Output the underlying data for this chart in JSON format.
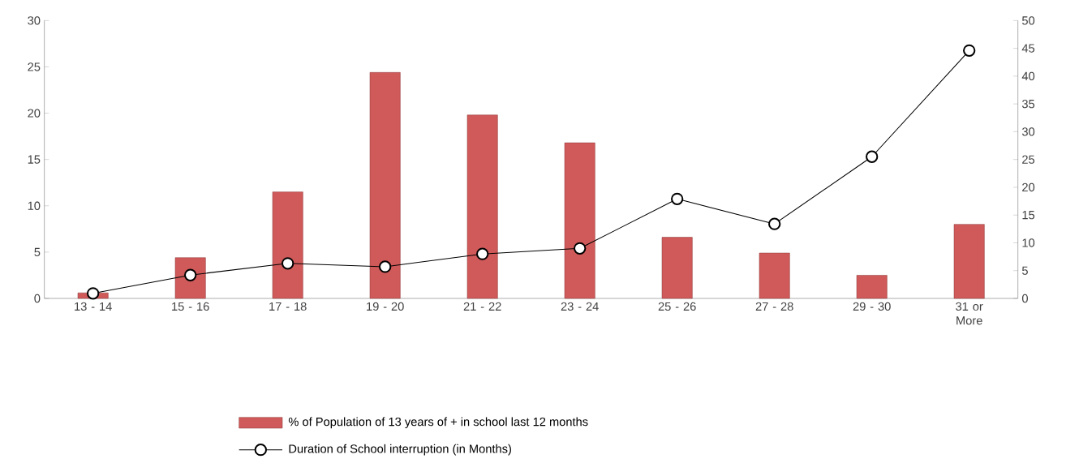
{
  "chart_data": {
    "type": "bar",
    "categories": [
      "13 - 14",
      "15 - 16",
      "17 - 18",
      "19 - 20",
      "21 - 22",
      "23 - 24",
      "25 - 26",
      "27 - 28",
      "29 - 30",
      "31 or More"
    ],
    "series": [
      {
        "name": "% of Population of 13 years of + in school last 12 months",
        "color": "#d05a5a",
        "values": [
          0.6,
          4.4,
          11.5,
          24.4,
          19.8,
          16.8,
          6.6,
          4.9,
          2.5,
          8.0
        ]
      },
      {
        "name": "Duration of School interruption (in Months)",
        "type": "line",
        "axis": "y2",
        "color": "#000000",
        "values": [
          0.9,
          4.2,
          6.3,
          5.7,
          8.0,
          9.0,
          17.9,
          13.4,
          25.5,
          44.6
        ]
      }
    ],
    "ylim": [
      0,
      30
    ],
    "yticks": [
      0,
      5,
      10,
      15,
      20,
      25,
      30
    ],
    "y2lim": [
      0,
      50
    ],
    "y2ticks": [
      0,
      5,
      10,
      15,
      20,
      25,
      30,
      35,
      40,
      45,
      50
    ],
    "marker": "circle",
    "legend": "bottom",
    "grid": false
  }
}
